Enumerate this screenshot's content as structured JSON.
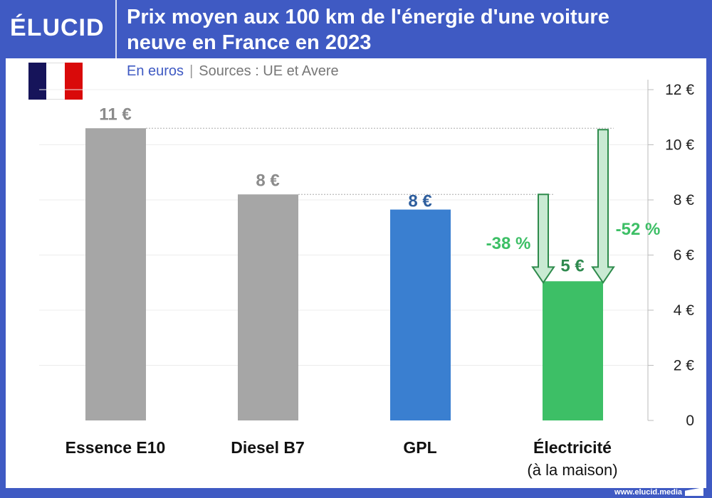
{
  "header": {
    "logo": "ÉLUCID",
    "title_line1": "Prix moyen aux 100 km de l'énergie d'une voiture",
    "title_line2": "neuve en France en 2023"
  },
  "subtitle": {
    "unit": "En euros",
    "separator": "|",
    "sources": "Sources : UE et Avere"
  },
  "footer": {
    "url": "www.elucid.media"
  },
  "colors": {
    "frame": "#3f5ac3",
    "gray_bar": "#a6a6a6",
    "gpl_bar": "#3a7fd0",
    "electric_bar": "#3dbf66",
    "arrow_fill": "#c9ead3",
    "arrow_stroke": "#2e8b4c"
  },
  "chart_data": {
    "type": "bar",
    "categories": [
      "Essence E10",
      "Diesel B7",
      "GPL",
      "Électricité"
    ],
    "category_sublabels": [
      "",
      "",
      "",
      "(à la maison)"
    ],
    "values": [
      10.6,
      8.2,
      7.65,
      5.05
    ],
    "data_labels": [
      "11 €",
      "8 €",
      "8 €",
      "5 €"
    ],
    "ylim": [
      0,
      12
    ],
    "yticks": [
      0,
      2,
      4,
      6,
      8,
      10,
      12
    ],
    "ytick_labels": [
      "0",
      "2 €",
      "4 €",
      "6 €",
      "8 €",
      "10 €",
      "12 €"
    ],
    "y_axis_side": "right",
    "grid": true,
    "annotations": [
      {
        "text": "-38 %",
        "from": "Diesel B7",
        "to": "Électricité"
      },
      {
        "text": "-52 %",
        "from": "Essence E10",
        "to": "Électricité"
      }
    ]
  }
}
